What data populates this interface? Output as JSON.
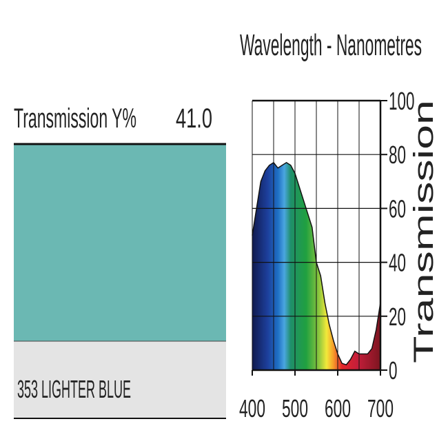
{
  "filter": {
    "label": "Transmission Y%",
    "value": "41.0",
    "name": "353 LIGHTER BLUE",
    "swatch_color": "#6bb8b3"
  },
  "chart_data": {
    "type": "area",
    "title": "Wavelength - Nanometres",
    "y_label": "Transmission",
    "x": [
      400,
      410,
      420,
      430,
      440,
      450,
      460,
      470,
      480,
      490,
      500,
      510,
      520,
      530,
      540,
      550,
      560,
      570,
      580,
      590,
      600,
      610,
      620,
      630,
      640,
      650,
      660,
      670,
      680,
      690,
      700
    ],
    "values": [
      50,
      60,
      70,
      74,
      76,
      77,
      75,
      76,
      77,
      76,
      73,
      68,
      63,
      58,
      53,
      40,
      35,
      25,
      17,
      11,
      6,
      2.5,
      2,
      4,
      7,
      6,
      6,
      6,
      8,
      15,
      25
    ],
    "xlim": [
      400,
      700
    ],
    "ylim": [
      0,
      100
    ],
    "xticks": [
      400,
      500,
      600,
      700
    ],
    "yticks": [
      0,
      20,
      40,
      60,
      80,
      100
    ],
    "grid": true
  }
}
